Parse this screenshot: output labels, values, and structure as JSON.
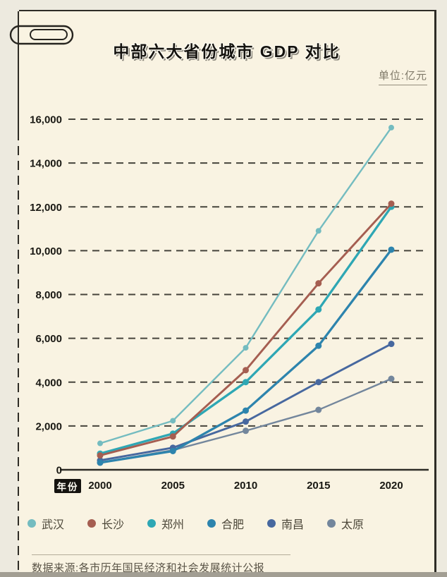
{
  "header": {
    "title": "中部六大省份城市 GDP 对比",
    "unit_label": "单位:亿元"
  },
  "chart_data": {
    "type": "line",
    "title": "中部六大省份城市 GDP 对比",
    "unit": "单位:亿元",
    "xlabel": "年份",
    "x": [
      2000,
      2005,
      2010,
      2015,
      2020
    ],
    "ylim": [
      0,
      16000
    ],
    "yticks": [
      0,
      2000,
      4000,
      6000,
      8000,
      10000,
      12000,
      14000,
      16000
    ],
    "grid": "horizontal-dashed",
    "legend_position": "bottom",
    "series": [
      {
        "name": "武汉",
        "color": "#74bcc0",
        "values": [
          1206,
          2238,
          5566,
          10905,
          15616
        ]
      },
      {
        "name": "长沙",
        "color": "#a55e51",
        "values": [
          656,
          1520,
          4547,
          8510,
          12143
        ]
      },
      {
        "name": "郑州",
        "color": "#2ea7b4",
        "values": [
          738,
          1650,
          4000,
          7315,
          12003
        ]
      },
      {
        "name": "合肥",
        "color": "#2d84ad",
        "values": [
          325,
          854,
          2702,
          5660,
          10046
        ]
      },
      {
        "name": "南昌",
        "color": "#47689f",
        "values": [
          428,
          1008,
          2200,
          4000,
          5745
        ]
      },
      {
        "name": "太原",
        "color": "#73869c",
        "values": [
          326,
          895,
          1778,
          2735,
          4153
        ]
      }
    ]
  },
  "footer": {
    "source": "数据来源:各市历年国民经济和社会发展统计公报"
  }
}
